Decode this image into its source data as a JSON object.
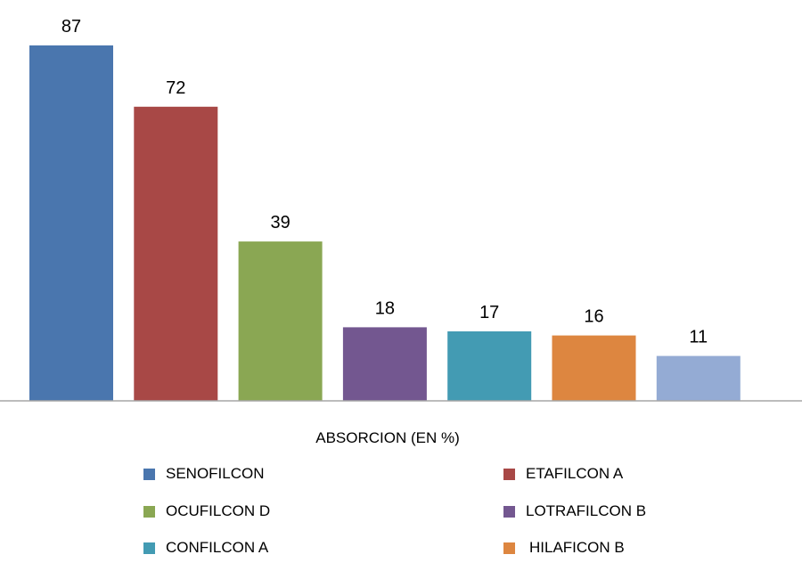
{
  "chart_data": {
    "type": "bar",
    "categories": [
      "SENOFILCON",
      "ETAFILCON A",
      "OCUFILCON D",
      "LOTRAFILCON B",
      "CONFILCON A",
      "HILAFICON B",
      ""
    ],
    "values": [
      87,
      72,
      39,
      18,
      17,
      16,
      11
    ],
    "colors": [
      "#4a76ae",
      "#a84846",
      "#8aa753",
      "#735790",
      "#439bb3",
      "#dd8640",
      "#94abd4"
    ],
    "xlabel": "ABSORCION (EN %)",
    "ylabel": "",
    "ylim": [
      0,
      87
    ],
    "grid": false,
    "legend_placement": "bottom",
    "legend": [
      {
        "label": "SENOFILCON",
        "color": "#4a76ae"
      },
      {
        "label": "ETAFILCON A",
        "color": "#a84846"
      },
      {
        "label": "OCUFILCON D",
        "color": "#8aa753"
      },
      {
        "label": "LOTRAFILCON B",
        "color": "#735790"
      },
      {
        "label": "CONFILCON A",
        "color": "#439bb3"
      },
      {
        "label": "HILAFICON B",
        "color": "#dd8640"
      }
    ]
  }
}
